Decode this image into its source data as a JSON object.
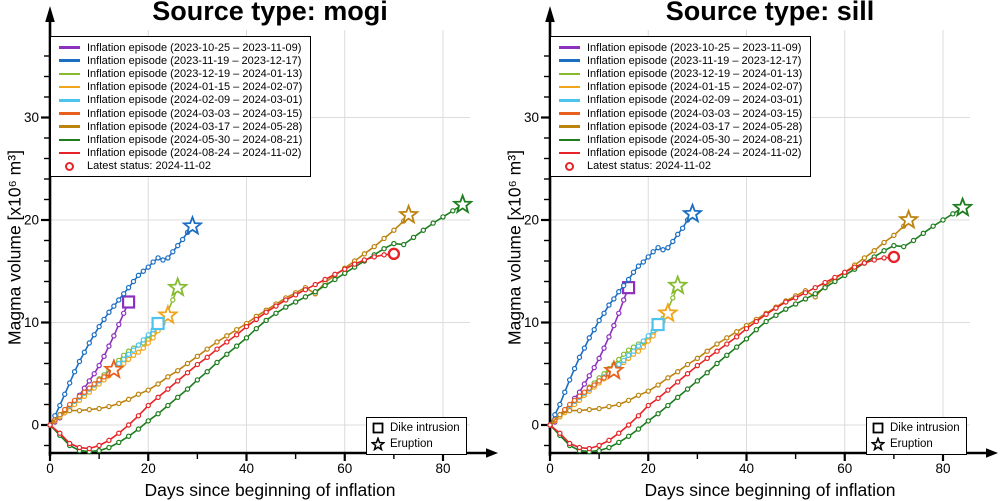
{
  "charts": [
    {
      "id": "mogi",
      "title": "Source type: mogi"
    },
    {
      "id": "sill",
      "title": "Source type: sill"
    }
  ],
  "axis": {
    "xlabel": "Days since beginning of inflation",
    "ylabel": "Magma volume [x10⁶ m³]",
    "x_ticks_major": [
      0,
      20,
      40,
      60,
      80
    ],
    "x_ticks_minor": [
      10,
      30,
      50,
      70
    ],
    "y_ticks_major": [
      0,
      10,
      20,
      30
    ],
    "y_minor_step": 2,
    "y_minor_min": -2,
    "y_minor_max": 36,
    "xlim": [
      0,
      88
    ],
    "ylim": [
      -3,
      37
    ]
  },
  "colors": {
    "grid": "#dcdcdc",
    "axis": "#000000",
    "latest_status": "#e62427"
  },
  "marker_legend": {
    "dike": "Dike intrusion",
    "eruption": "Eruption"
  },
  "legend": {
    "latest_label": "Latest status: 2024-11-02"
  },
  "chart_data": {
    "type": "line",
    "title": [
      "Source type: mogi",
      "Source type: sill"
    ],
    "xlabel": "Days since beginning of inflation",
    "ylabel": "Magma volume [x10⁶ m³]",
    "xlim": [
      0,
      88
    ],
    "ylim": [
      -3,
      37
    ],
    "grid": true,
    "legend_position": "upper left",
    "series": [
      {
        "name": "Inflation episode (2023-10-25 – 2023-11-09)",
        "color": "#8c30c0",
        "end_marker": "square",
        "days": [
          0,
          1,
          2,
          3,
          4,
          5,
          6,
          7,
          8,
          9,
          10,
          11,
          12,
          13,
          14,
          15,
          16
        ],
        "mogi": [
          0,
          0.3,
          0.7,
          1.2,
          1.7,
          2.3,
          2.9,
          3.6,
          4.3,
          5.0,
          5.8,
          6.7,
          7.7,
          8.7,
          9.8,
          10.9,
          12.0
        ],
        "sill": [
          0,
          0.3,
          0.8,
          1.3,
          1.9,
          2.6,
          3.2,
          4.0,
          4.8,
          5.6,
          6.5,
          7.5,
          8.6,
          9.7,
          10.9,
          12.2,
          13.4
        ]
      },
      {
        "name": "Inflation episode (2023-11-19 – 2023-12-17)",
        "color": "#1b6ec2",
        "end_marker": "star",
        "days": [
          0,
          1,
          2,
          3,
          4,
          5,
          6,
          7,
          8,
          9,
          10,
          11,
          12,
          13,
          14,
          15,
          16,
          17,
          18,
          19,
          20,
          21,
          22,
          23,
          24,
          25,
          26,
          27,
          28,
          29
        ],
        "mogi": [
          0,
          0.9,
          1.9,
          3.0,
          4.1,
          5.2,
          6.2,
          7.1,
          8.0,
          8.8,
          9.6,
          10.3,
          11.0,
          11.6,
          12.2,
          12.8,
          13.4,
          14.0,
          14.6,
          15.0,
          15.4,
          15.9,
          16.3,
          16.1,
          16.3,
          16.9,
          17.5,
          18.1,
          18.8,
          19.4
        ],
        "sill": [
          0,
          1.0,
          2.0,
          3.2,
          4.4,
          5.5,
          6.6,
          7.5,
          8.5,
          9.3,
          10.2,
          10.9,
          11.7,
          12.3,
          13.0,
          13.6,
          14.2,
          14.9,
          15.5,
          15.9,
          16.4,
          16.9,
          17.3,
          17.1,
          17.3,
          17.9,
          18.6,
          19.2,
          20.0,
          20.6
        ]
      },
      {
        "name": "Inflation episode (2023-12-19 – 2024-01-13)",
        "color": "#86bb2f",
        "end_marker": "star",
        "days": [
          0,
          1,
          2,
          3,
          4,
          5,
          6,
          7,
          8,
          9,
          10,
          11,
          12,
          13,
          14,
          15,
          16,
          17,
          18,
          19,
          20,
          21,
          22,
          23,
          24,
          25,
          26
        ],
        "mogi": [
          0,
          0.4,
          0.8,
          1.3,
          1.8,
          2.3,
          2.7,
          3.1,
          3.6,
          4.0,
          4.5,
          4.9,
          5.4,
          5.8,
          6.3,
          6.8,
          7.2,
          7.5,
          7.8,
          8.0,
          8.3,
          8.9,
          9.5,
          10.2,
          11.1,
          12.2,
          13.4
        ],
        "sill": [
          0,
          0.4,
          0.8,
          1.3,
          1.8,
          2.3,
          2.7,
          3.1,
          3.7,
          4.1,
          4.6,
          5.0,
          5.5,
          5.9,
          6.4,
          6.9,
          7.3,
          7.6,
          7.9,
          8.1,
          8.4,
          9.0,
          9.6,
          10.4,
          11.3,
          12.4,
          13.6
        ]
      },
      {
        "name": "Inflation episode (2024-01-15 – 2024-02-07)",
        "color": "#f0a51a",
        "end_marker": "star",
        "days": [
          0,
          1,
          2,
          3,
          4,
          5,
          6,
          7,
          8,
          9,
          10,
          11,
          12,
          13,
          14,
          15,
          16,
          17,
          18,
          19,
          20,
          21,
          22,
          23,
          24
        ],
        "mogi": [
          0,
          0.4,
          0.8,
          1.2,
          1.6,
          2.0,
          2.4,
          2.8,
          3.2,
          3.6,
          4.0,
          4.4,
          4.8,
          5.2,
          5.6,
          6.0,
          6.4,
          6.8,
          7.1,
          7.5,
          8.0,
          8.5,
          9.2,
          9.9,
          10.7
        ],
        "sill": [
          0,
          0.4,
          0.8,
          1.2,
          1.6,
          2.0,
          2.4,
          2.9,
          3.3,
          3.7,
          4.1,
          4.5,
          4.9,
          5.3,
          5.7,
          6.1,
          6.5,
          6.9,
          7.2,
          7.6,
          8.2,
          8.7,
          9.4,
          10.1,
          10.9
        ]
      },
      {
        "name": "Inflation episode (2024-02-09 – 2024-03-01)",
        "color": "#4fc3f0",
        "end_marker": "square",
        "days": [
          0,
          1,
          2,
          3,
          4,
          5,
          6,
          7,
          8,
          9,
          10,
          11,
          12,
          13,
          14,
          15,
          16,
          17,
          18,
          19,
          20,
          21,
          22
        ],
        "mogi": [
          0,
          0.5,
          1.0,
          1.5,
          1.9,
          2.3,
          2.7,
          3.1,
          3.5,
          3.9,
          4.3,
          4.7,
          5.1,
          5.5,
          6.0,
          6.4,
          6.9,
          7.3,
          7.8,
          8.3,
          8.8,
          9.3,
          9.9
        ],
        "sill": [
          0,
          0.5,
          1.0,
          1.5,
          1.9,
          2.3,
          2.7,
          3.1,
          3.5,
          3.9,
          4.3,
          4.7,
          5.0,
          5.4,
          5.9,
          6.3,
          6.8,
          7.2,
          7.7,
          8.2,
          8.7,
          9.2,
          9.8
        ]
      },
      {
        "name": "Inflation episode (2024-03-03 – 2024-03-15)",
        "color": "#e8611c",
        "end_marker": "star",
        "days": [
          0,
          1,
          2,
          3,
          4,
          5,
          6,
          7,
          8,
          9,
          10,
          11,
          12,
          13
        ],
        "mogi": [
          0,
          0.5,
          1.0,
          1.5,
          2.0,
          2.4,
          2.8,
          3.2,
          3.6,
          4.0,
          4.4,
          4.7,
          5.0,
          5.4
        ],
        "sill": [
          0,
          0.5,
          1.0,
          1.5,
          2.0,
          2.4,
          2.8,
          3.2,
          3.6,
          3.9,
          4.3,
          4.6,
          5.0,
          5.3
        ]
      },
      {
        "name": "Inflation episode (2024-03-17 – 2024-05-28)",
        "color": "#bd830f",
        "end_marker": "star",
        "days": [
          0,
          2,
          4,
          6,
          8,
          10,
          12,
          14,
          16,
          18,
          20,
          22,
          24,
          26,
          28,
          30,
          32,
          34,
          36,
          38,
          40,
          42,
          44,
          46,
          48,
          50,
          52,
          54,
          56,
          58,
          60,
          62,
          64,
          66,
          68,
          70,
          72,
          73
        ],
        "mogi": [
          0,
          1.0,
          1.4,
          1.4,
          1.5,
          1.6,
          1.8,
          2.1,
          2.5,
          3.0,
          3.4,
          4.0,
          4.7,
          5.3,
          6.0,
          6.7,
          7.4,
          8.1,
          8.7,
          9.3,
          9.9,
          10.6,
          11.2,
          11.8,
          12.4,
          12.9,
          13.4,
          12.8,
          13.9,
          14.6,
          15.3,
          16.0,
          16.7,
          17.4,
          18.2,
          19.0,
          19.9,
          20.5
        ],
        "sill": [
          0,
          1.0,
          1.4,
          1.4,
          1.5,
          1.6,
          1.8,
          2.0,
          2.4,
          2.9,
          3.3,
          3.9,
          4.6,
          5.2,
          5.9,
          6.5,
          7.2,
          7.9,
          8.5,
          9.1,
          9.7,
          10.3,
          10.9,
          11.5,
          12.1,
          12.6,
          13.1,
          12.5,
          13.6,
          14.3,
          14.9,
          15.6,
          16.3,
          17.0,
          17.8,
          18.5,
          19.4,
          20.0
        ]
      },
      {
        "name": "Inflation episode (2024-05-30 – 2024-08-21)",
        "color": "#1e7d1e",
        "end_marker": "star",
        "days": [
          0,
          2,
          4,
          6,
          8,
          10,
          12,
          14,
          16,
          18,
          20,
          22,
          24,
          26,
          28,
          30,
          32,
          34,
          36,
          38,
          40,
          42,
          44,
          46,
          48,
          50,
          52,
          54,
          56,
          58,
          60,
          62,
          64,
          66,
          68,
          70,
          72,
          74,
          76,
          78,
          80,
          82,
          84
        ],
        "mogi": [
          0,
          -1.0,
          -2.0,
          -2.5,
          -2.6,
          -2.5,
          -2.2,
          -1.7,
          -1.1,
          -0.4,
          0.4,
          1.1,
          1.9,
          2.7,
          3.5,
          4.4,
          5.2,
          6.1,
          6.9,
          7.7,
          8.5,
          9.4,
          10.2,
          10.9,
          11.5,
          12.0,
          12.5,
          13.0,
          13.6,
          14.2,
          14.8,
          15.4,
          16.0,
          16.6,
          17.2,
          17.7,
          17.6,
          18.3,
          19.0,
          19.7,
          20.3,
          20.9,
          21.5
        ],
        "sill": [
          0,
          -1.0,
          -2.0,
          -2.5,
          -2.6,
          -2.5,
          -2.2,
          -1.7,
          -1.1,
          -0.4,
          0.4,
          1.1,
          1.9,
          2.7,
          3.5,
          4.3,
          5.1,
          6.0,
          6.8,
          7.6,
          8.4,
          9.3,
          10.1,
          10.7,
          11.3,
          11.8,
          12.3,
          12.8,
          13.4,
          14.0,
          14.6,
          15.2,
          15.8,
          16.4,
          17.0,
          17.5,
          17.4,
          18.0,
          18.7,
          19.4,
          20.0,
          20.6,
          21.2
        ]
      },
      {
        "name": "Inflation episode (2024-08-24 – 2024-11-02)",
        "color": "#e62427",
        "end_marker": "circle",
        "days": [
          0,
          2,
          4,
          6,
          8,
          10,
          12,
          14,
          16,
          18,
          20,
          22,
          24,
          26,
          28,
          30,
          32,
          34,
          36,
          38,
          40,
          42,
          44,
          46,
          48,
          50,
          52,
          54,
          56,
          58,
          60,
          62,
          64,
          66,
          68,
          70
        ],
        "mogi": [
          0,
          -0.8,
          -1.8,
          -2.2,
          -2.3,
          -2.0,
          -1.5,
          -0.8,
          0.0,
          0.9,
          1.9,
          2.7,
          3.5,
          4.3,
          5.1,
          5.9,
          6.6,
          7.4,
          8.1,
          8.8,
          9.6,
          10.3,
          11.0,
          11.6,
          12.2,
          12.7,
          13.2,
          13.7,
          14.2,
          14.7,
          15.2,
          15.7,
          16.1,
          16.4,
          16.6,
          16.7
        ],
        "sill": [
          0,
          -0.8,
          -1.8,
          -2.2,
          -2.3,
          -2.0,
          -1.5,
          -0.8,
          0.0,
          0.9,
          1.9,
          2.6,
          3.4,
          4.2,
          5.0,
          5.8,
          6.5,
          7.2,
          7.9,
          8.6,
          9.4,
          10.1,
          10.8,
          11.4,
          12.0,
          12.4,
          12.9,
          13.4,
          13.9,
          14.4,
          14.9,
          15.4,
          15.8,
          16.1,
          16.3,
          16.4
        ]
      }
    ]
  }
}
